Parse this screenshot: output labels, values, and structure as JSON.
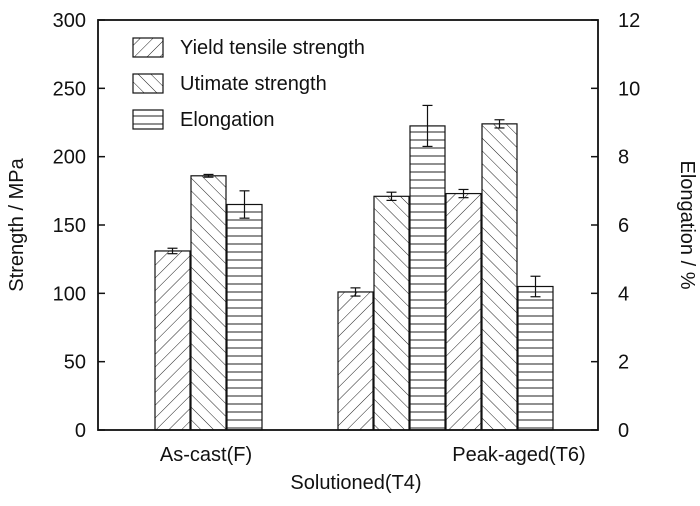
{
  "chart_data": {
    "type": "bar",
    "categories": [
      "As-cast(F)",
      "Solutioned(T4)",
      "Peak-aged(T6)"
    ],
    "series": [
      {
        "name": "Yield tensile strength",
        "axis": "left",
        "pattern": "diagonal-forward",
        "values": [
          131,
          101,
          173
        ],
        "errors": [
          2,
          3,
          3
        ]
      },
      {
        "name": "Utimate strength",
        "axis": "left",
        "pattern": "diagonal-backward",
        "values": [
          186,
          171,
          224
        ],
        "errors": [
          1,
          3,
          3
        ]
      },
      {
        "name": "Elongation",
        "axis": "right",
        "pattern": "horizontal",
        "values": [
          6.6,
          8.9,
          4.2
        ],
        "errors": [
          0.4,
          0.6,
          0.3
        ]
      }
    ],
    "ylabel": "Strength / MPa",
    "y2label": "Elongation / %",
    "ylim": [
      0,
      300
    ],
    "y2lim": [
      0,
      12
    ],
    "yticks": [
      0,
      50,
      100,
      150,
      200,
      250,
      300
    ],
    "y2ticks": [
      0,
      2,
      4,
      6,
      8,
      10,
      12
    ],
    "legend_position": "top-left",
    "grid": false,
    "bar_fill": "#ffffff",
    "line_color": "#111111"
  }
}
